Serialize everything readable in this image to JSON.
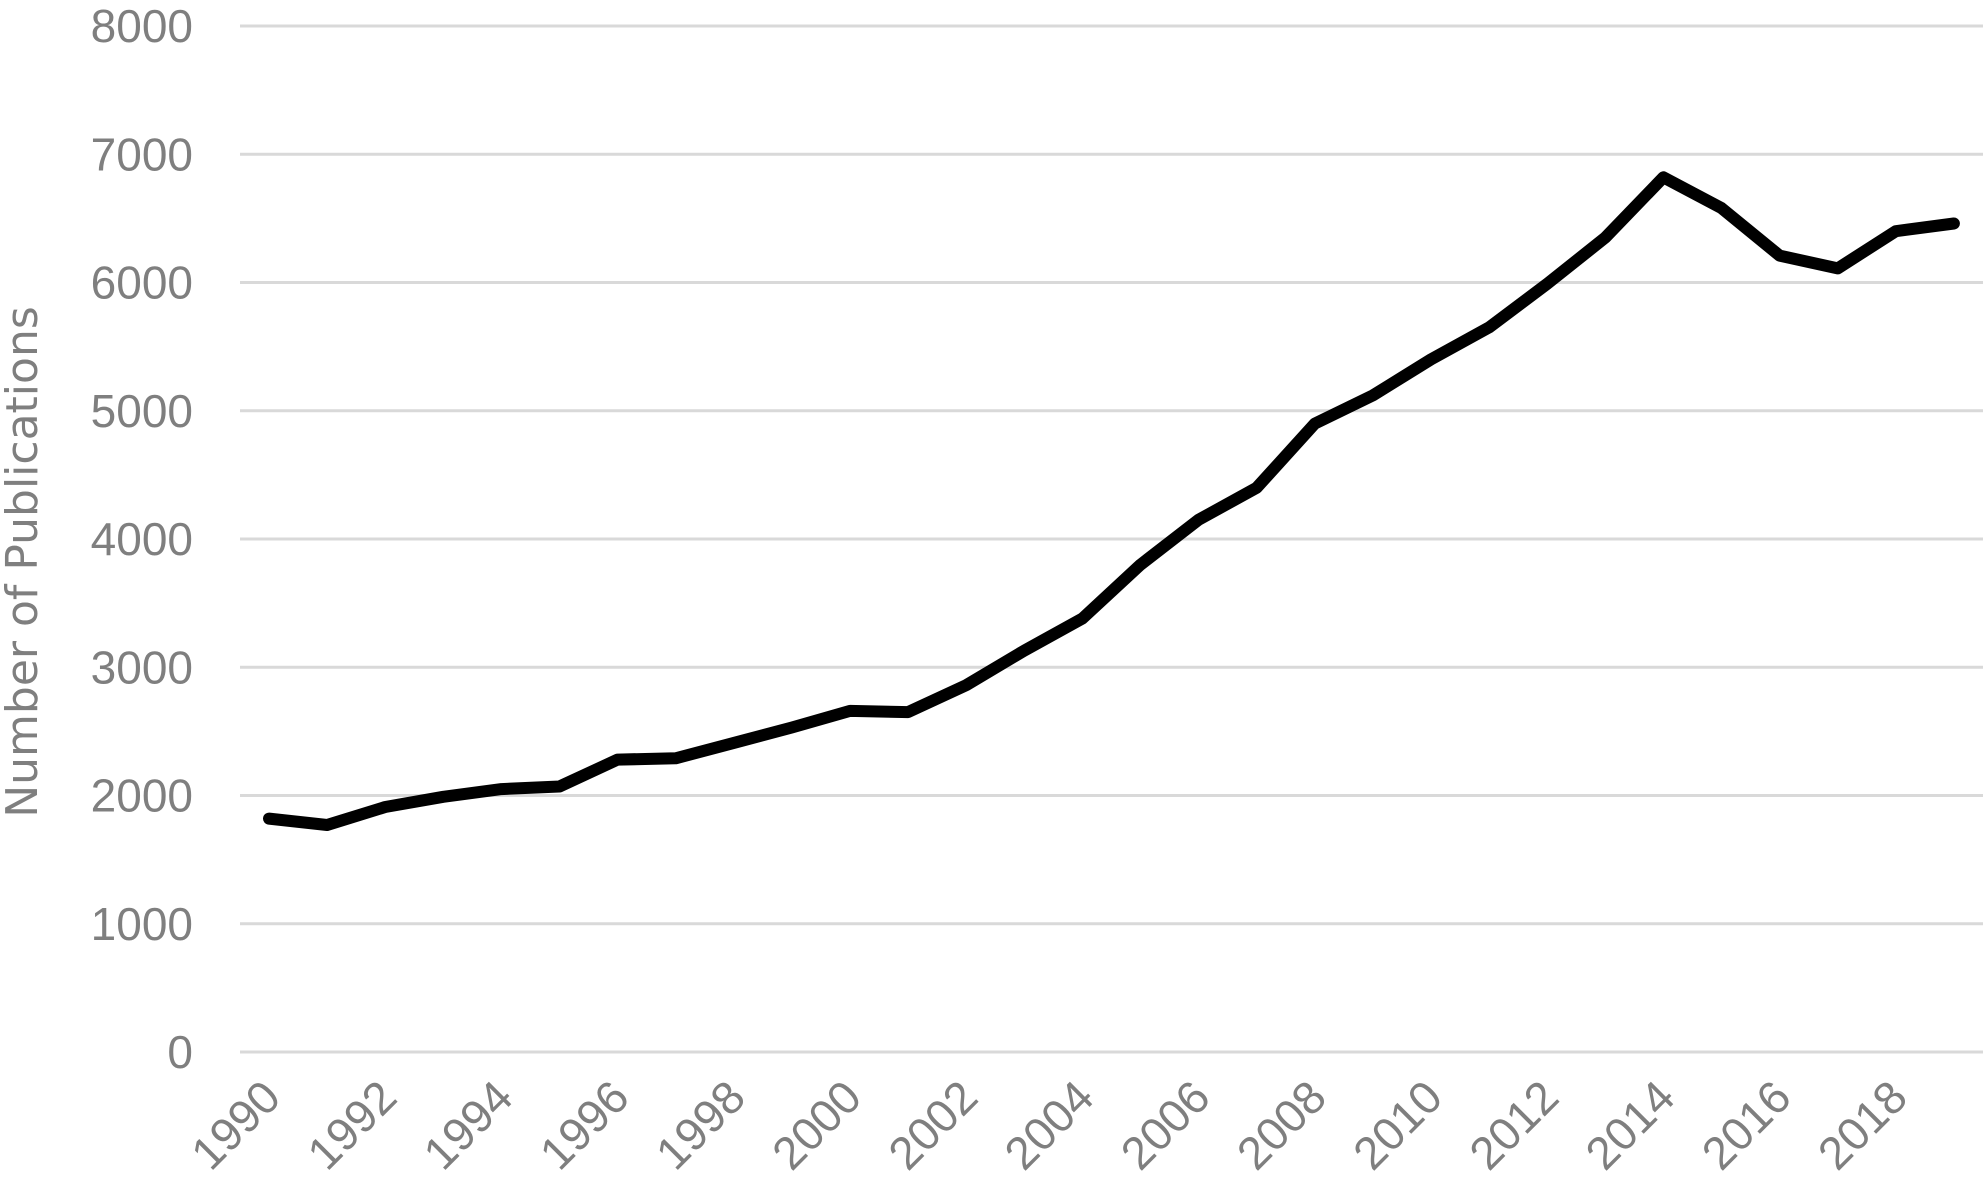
{
  "chart_data": {
    "type": "line",
    "title": "",
    "xlabel": "",
    "ylabel": "Number of Publications",
    "ylim": [
      0,
      8000
    ],
    "yticks": [
      0,
      1000,
      2000,
      3000,
      4000,
      5000,
      6000,
      7000,
      8000
    ],
    "ytick_labels": [
      "0",
      "1000",
      "2000",
      "3000",
      "4000",
      "5000",
      "6000",
      "7000",
      "8000"
    ],
    "xtick_labels": [
      "1990",
      "1992",
      "1994",
      "1996",
      "1998",
      "2000",
      "2002",
      "2004",
      "2006",
      "2008",
      "2010",
      "2012",
      "2014",
      "2016",
      "2018"
    ],
    "x": [
      1990,
      1991,
      1992,
      1993,
      1994,
      1995,
      1996,
      1997,
      1998,
      1999,
      2000,
      2001,
      2002,
      2003,
      2004,
      2005,
      2006,
      2007,
      2008,
      2009,
      2010,
      2011,
      2012,
      2013,
      2014,
      2015,
      2016,
      2017,
      2018,
      2019
    ],
    "series": [
      {
        "values": [
          1820,
          1770,
          1910,
          1990,
          2050,
          2070,
          2280,
          2290,
          2410,
          2530,
          2660,
          2650,
          2860,
          3130,
          3380,
          3800,
          4150,
          4400,
          4900,
          5120,
          5400,
          5650,
          5990,
          6350,
          6820,
          6580,
          6210,
          6110,
          6400,
          6460
        ],
        "color": "#000000"
      }
    ],
    "grid": true,
    "legend": "none"
  }
}
